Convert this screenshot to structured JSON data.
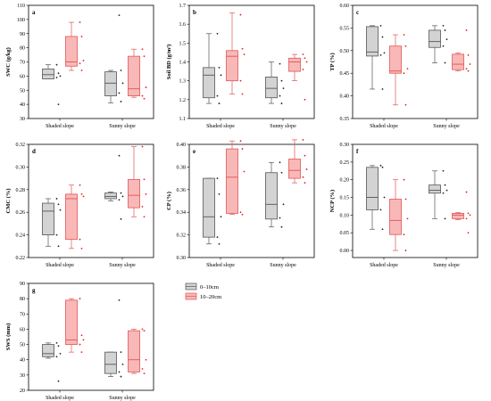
{
  "colors": {
    "g1_fill": "#d3d3d3",
    "g1_edge": "#555555",
    "g1_pt": "#222222",
    "g2_fill": "#f9b8b8",
    "g2_edge": "#e05555",
    "g2_pt": "#e02222"
  },
  "legend": {
    "g1": "0–10cm",
    "g2": "10–20cm"
  },
  "chart_data": [
    {
      "type": "box",
      "panel": "a",
      "ylabel": "SWC (g/kg)",
      "ylim": [
        30,
        110
      ],
      "yticks": [
        30,
        40,
        50,
        60,
        70,
        80,
        90,
        100,
        110
      ],
      "categories": [
        "Shaded slope",
        "Sunny slope"
      ],
      "boxes": {
        "g1": [
          {
            "q1": 58,
            "median": 61,
            "q3": 65,
            "whisker_low": 58,
            "whisker_high": 68,
            "points": [
              68,
              62,
              60,
              59,
              40
            ]
          },
          {
            "q1": 46,
            "median": 55,
            "q3": 63,
            "whisker_low": 41,
            "whisker_high": 64,
            "points": [
              103,
              64,
              55,
              48,
              42
            ]
          }
        ],
        "g2": [
          {
            "q1": 67,
            "median": 70,
            "q3": 88,
            "whisker_low": 64,
            "whisker_high": 98,
            "points": [
              98,
              88,
              71,
              69,
              64
            ]
          },
          {
            "q1": 46,
            "median": 51,
            "q3": 74,
            "whisker_low": 45,
            "whisker_high": 79,
            "points": [
              79,
              74,
              52,
              46,
              44
            ]
          }
        ]
      }
    },
    {
      "type": "box",
      "panel": "b",
      "ylabel": "Soil BD (g/m³)",
      "ylim": [
        1.1,
        1.7
      ],
      "yticks": [
        1.1,
        1.2,
        1.3,
        1.4,
        1.5,
        1.6,
        1.7
      ],
      "categories": [
        "Shaded slope",
        "Sunny slope"
      ],
      "boxes": {
        "g1": [
          {
            "q1": 1.21,
            "median": 1.33,
            "q3": 1.37,
            "whisker_low": 1.18,
            "whisker_high": 1.55,
            "points": [
              1.55,
              1.37,
              1.33,
              1.22,
              1.18
            ]
          },
          {
            "q1": 1.21,
            "median": 1.26,
            "q3": 1.32,
            "whisker_low": 1.18,
            "whisker_high": 1.4,
            "points": [
              1.39,
              1.3,
              1.26,
              1.22,
              1.18
            ]
          }
        ],
        "g2": [
          {
            "q1": 1.3,
            "median": 1.43,
            "q3": 1.46,
            "whisker_low": 1.23,
            "whisker_high": 1.66,
            "points": [
              1.65,
              1.47,
              1.44,
              1.3,
              1.23
            ]
          },
          {
            "q1": 1.35,
            "median": 1.4,
            "q3": 1.42,
            "whisker_low": 1.3,
            "whisker_high": 1.44,
            "points": [
              1.44,
              1.42,
              1.4,
              1.36,
              1.2
            ]
          }
        ]
      }
    },
    {
      "type": "box",
      "panel": "c",
      "ylabel": "TP (%)",
      "ylim": [
        0.35,
        0.6
      ],
      "yticks": [
        0.35,
        0.4,
        0.45,
        0.5,
        0.55,
        0.6
      ],
      "categories": [
        "Shaded slope",
        "Sunny slope"
      ],
      "boxes": {
        "g1": [
          {
            "q1": 0.488,
            "median": 0.497,
            "q3": 0.553,
            "whisker_low": 0.415,
            "whisker_high": 0.555,
            "points": [
              0.555,
              0.53,
              0.495,
              0.49,
              0.415
            ]
          },
          {
            "q1": 0.507,
            "median": 0.52,
            "q3": 0.545,
            "whisker_low": 0.473,
            "whisker_high": 0.555,
            "points": [
              0.555,
              0.545,
              0.525,
              0.51,
              0.473
            ]
          }
        ],
        "g2": [
          {
            "q1": 0.45,
            "median": 0.455,
            "q3": 0.51,
            "whisker_low": 0.38,
            "whisker_high": 0.535,
            "points": [
              0.535,
              0.51,
              0.46,
              0.45,
              0.38
            ]
          },
          {
            "q1": 0.458,
            "median": 0.47,
            "q3": 0.492,
            "whisker_low": 0.455,
            "whisker_high": 0.495,
            "points": [
              0.545,
              0.49,
              0.47,
              0.46,
              0.455
            ]
          }
        ]
      }
    },
    {
      "type": "box",
      "panel": "d",
      "ylabel": "CMC (%)",
      "ylim": [
        0.22,
        0.32
      ],
      "yticks": [
        0.22,
        0.24,
        0.26,
        0.28,
        0.3,
        0.32
      ],
      "categories": [
        "Shaded slope",
        "Sunny slope"
      ],
      "boxes": {
        "g1": [
          {
            "q1": 0.24,
            "median": 0.261,
            "q3": 0.268,
            "whisker_low": 0.23,
            "whisker_high": 0.272,
            "points": [
              0.272,
              0.267,
              0.262,
              0.24,
              0.23
            ]
          },
          {
            "q1": 0.272,
            "median": 0.274,
            "q3": 0.277,
            "whisker_low": 0.27,
            "whisker_high": 0.278,
            "points": [
              0.31,
              0.277,
              0.274,
              0.271,
              0.254
            ]
          }
        ],
        "g2": [
          {
            "q1": 0.236,
            "median": 0.272,
            "q3": 0.276,
            "whisker_low": 0.228,
            "whisker_high": 0.284,
            "points": [
              0.284,
              0.276,
              0.274,
              0.236,
              0.228
            ]
          },
          {
            "q1": 0.264,
            "median": 0.275,
            "q3": 0.289,
            "whisker_low": 0.256,
            "whisker_high": 0.318,
            "points": [
              0.318,
              0.289,
              0.276,
              0.265,
              0.256
            ]
          }
        ]
      }
    },
    {
      "type": "box",
      "panel": "e",
      "ylabel": "CP (%)",
      "ylim": [
        0.3,
        0.4
      ],
      "yticks": [
        0.3,
        0.32,
        0.34,
        0.36,
        0.38,
        0.4
      ],
      "categories": [
        "Shaded slope",
        "Sunny slope"
      ],
      "boxes": {
        "g1": [
          {
            "q1": 0.318,
            "median": 0.336,
            "q3": 0.37,
            "whisker_low": 0.312,
            "whisker_high": 0.37,
            "points": [
              0.37,
              0.356,
              0.336,
              0.318,
              0.312
            ]
          },
          {
            "q1": 0.334,
            "median": 0.347,
            "q3": 0.375,
            "whisker_low": 0.327,
            "whisker_high": 0.384,
            "points": [
              0.384,
              0.375,
              0.347,
              0.335,
              0.327
            ]
          }
        ],
        "g2": [
          {
            "q1": 0.339,
            "median": 0.371,
            "q3": 0.396,
            "whisker_low": 0.338,
            "whisker_high": 0.403,
            "points": [
              0.403,
              0.396,
              0.376,
              0.34,
              0.338
            ]
          },
          {
            "q1": 0.37,
            "median": 0.377,
            "q3": 0.387,
            "whisker_low": 0.366,
            "whisker_high": 0.404,
            "points": [
              0.404,
              0.39,
              0.378,
              0.371,
              0.366
            ]
          }
        ]
      }
    },
    {
      "type": "box",
      "panel": "f",
      "ylabel": "NCP (%)",
      "ylim": [
        -0.02,
        0.3
      ],
      "yticks": [
        0.0,
        0.05,
        0.1,
        0.15,
        0.2,
        0.25,
        0.3
      ],
      "categories": [
        "Shaded slope",
        "Sunny slope"
      ],
      "boxes": {
        "g1": [
          {
            "q1": 0.115,
            "median": 0.15,
            "q3": 0.235,
            "whisker_low": 0.06,
            "whisker_high": 0.24,
            "points": [
              0.24,
              0.235,
              0.15,
              0.115,
              0.06
            ]
          },
          {
            "q1": 0.162,
            "median": 0.17,
            "q3": 0.185,
            "whisker_low": 0.09,
            "whisker_high": 0.225,
            "points": [
              0.225,
              0.185,
              0.17,
              0.162,
              0.09
            ]
          }
        ],
        "g2": [
          {
            "q1": 0.045,
            "median": 0.085,
            "q3": 0.145,
            "whisker_low": 0.0,
            "whisker_high": 0.2,
            "points": [
              0.2,
              0.145,
              0.09,
              0.045,
              0.0
            ]
          },
          {
            "q1": 0.09,
            "median": 0.1,
            "q3": 0.105,
            "whisker_low": 0.087,
            "whisker_high": 0.107,
            "points": [
              0.165,
              0.105,
              0.1,
              0.09,
              0.05
            ]
          }
        ]
      }
    },
    {
      "type": "box",
      "panel": "g",
      "ylabel": "SWS (mm)",
      "ylim": [
        20,
        90
      ],
      "yticks": [
        20,
        30,
        40,
        50,
        60,
        70,
        80,
        90
      ],
      "categories": [
        "Shaded slope",
        "Sunny slope"
      ],
      "boxes": {
        "g1": [
          {
            "q1": 42,
            "median": 44,
            "q3": 50,
            "whisker_low": 41,
            "whisker_high": 51,
            "points": [
              51,
              49,
              44,
              42,
              26
            ]
          },
          {
            "q1": 31,
            "median": 37,
            "q3": 45,
            "whisker_low": 29,
            "whisker_high": 45,
            "points": [
              79,
              45,
              37,
              32,
              29
            ]
          }
        ],
        "g2": [
          {
            "q1": 50,
            "median": 53,
            "q3": 79,
            "whisker_low": 45,
            "whisker_high": 80,
            "points": [
              80,
              56,
              53,
              50,
              45
            ]
          },
          {
            "q1": 32,
            "median": 40,
            "q3": 59,
            "whisker_low": 31,
            "whisker_high": 60,
            "points": [
              60,
              59,
              40,
              34,
              31
            ]
          }
        ]
      }
    }
  ]
}
